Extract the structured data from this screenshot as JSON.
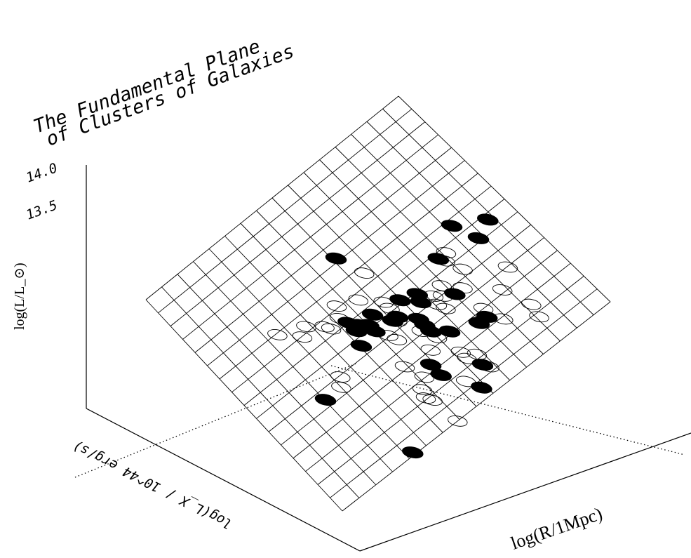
{
  "chart_data": {
    "type": "scatter",
    "title": [
      "The Fundamental Plane",
      "of Clusters of Galaxies"
    ],
    "xlabel": "log(R/1Mpc)",
    "ylabel": "log(L_X / 10^44 erg/s)",
    "zlabel": "log(L/L_⊙)",
    "zticks": [
      "14.0",
      "13.5"
    ],
    "grid": true,
    "series": [
      {
        "marker": "filled",
        "points": [
          {
            "u": 0.51,
            "v": 0.3
          },
          {
            "u": 0.83,
            "v": 0.46
          },
          {
            "u": 0.92,
            "v": 0.52
          },
          {
            "u": 0.86,
            "v": 0.55
          },
          {
            "u": 0.73,
            "v": 0.52
          },
          {
            "u": 0.56,
            "v": 0.55
          },
          {
            "u": 0.47,
            "v": 0.53
          },
          {
            "u": 0.44,
            "v": 0.55
          },
          {
            "u": 0.42,
            "v": 0.53
          },
          {
            "u": 0.4,
            "v": 0.54
          },
          {
            "u": 0.4,
            "v": 0.5
          },
          {
            "u": 0.5,
            "v": 0.59
          },
          {
            "u": 0.52,
            "v": 0.59
          },
          {
            "u": 0.6,
            "v": 0.6
          },
          {
            "u": 0.61,
            "v": 0.57
          },
          {
            "u": 0.69,
            "v": 0.65
          },
          {
            "u": 0.56,
            "v": 0.64
          },
          {
            "u": 0.56,
            "v": 0.67
          },
          {
            "u": 0.56,
            "v": 0.7
          },
          {
            "u": 0.6,
            "v": 0.74
          },
          {
            "u": 0.44,
            "v": 0.58
          },
          {
            "u": 0.38,
            "v": 0.59
          },
          {
            "u": 0.68,
            "v": 0.78
          },
          {
            "u": 0.71,
            "v": 0.78
          },
          {
            "u": 0.49,
            "v": 0.79
          },
          {
            "u": 0.49,
            "v": 0.84
          },
          {
            "u": 0.6,
            "v": 0.9
          },
          {
            "u": 0.55,
            "v": 0.96
          },
          {
            "u": 0.19,
            "v": 0.66
          },
          {
            "u": 0.27,
            "v": 0.99
          }
        ]
      },
      {
        "marker": "open",
        "points": [
          {
            "u": 0.3,
            "v": 0.42
          },
          {
            "u": 0.41,
            "v": 0.43
          },
          {
            "u": 0.39,
            "v": 0.47
          },
          {
            "u": 0.54,
            "v": 0.4
          },
          {
            "u": 0.34,
            "v": 0.46
          },
          {
            "u": 0.35,
            "v": 0.48
          },
          {
            "u": 0.47,
            "v": 0.46
          },
          {
            "u": 0.52,
            "v": 0.52
          },
          {
            "u": 0.52,
            "v": 0.55
          },
          {
            "u": 0.51,
            "v": 0.6
          },
          {
            "u": 0.76,
            "v": 0.52
          },
          {
            "u": 0.74,
            "v": 0.54
          },
          {
            "u": 0.86,
            "v": 0.69
          },
          {
            "u": 0.76,
            "v": 0.6
          },
          {
            "u": 0.72,
            "v": 0.65
          },
          {
            "u": 0.68,
            "v": 0.6
          },
          {
            "u": 0.64,
            "v": 0.61
          },
          {
            "u": 0.63,
            "v": 0.64
          },
          {
            "u": 0.66,
            "v": 0.63
          },
          {
            "u": 0.46,
            "v": 0.62
          },
          {
            "u": 0.47,
            "v": 0.65
          },
          {
            "u": 0.54,
            "v": 0.68
          },
          {
            "u": 0.56,
            "v": 0.73
          },
          {
            "u": 0.8,
            "v": 0.74
          },
          {
            "u": 0.72,
            "v": 0.75
          },
          {
            "u": 0.74,
            "v": 0.82
          },
          {
            "u": 0.83,
            "v": 0.84
          },
          {
            "u": 0.82,
            "v": 0.89
          },
          {
            "u": 0.27,
            "v": 0.63
          },
          {
            "u": 0.25,
            "v": 0.66
          },
          {
            "u": 0.45,
            "v": 0.81
          },
          {
            "u": 0.42,
            "v": 0.84
          },
          {
            "u": 0.41,
            "v": 0.87
          },
          {
            "u": 0.42,
            "v": 0.89
          },
          {
            "u": 0.58,
            "v": 0.82
          },
          {
            "u": 0.58,
            "v": 0.85
          },
          {
            "u": 0.61,
            "v": 0.86
          },
          {
            "u": 0.53,
            "v": 0.91
          },
          {
            "u": 0.61,
            "v": 0.92
          },
          {
            "u": 0.43,
            "v": 1.0
          },
          {
            "u": 0.22,
            "v": 0.38
          },
          {
            "u": 0.27,
            "v": 0.44
          },
          {
            "u": 0.43,
            "v": 0.74
          },
          {
            "u": 0.52,
            "v": 0.75
          },
          {
            "u": 0.64,
            "v": 0.67
          }
        ]
      }
    ]
  }
}
